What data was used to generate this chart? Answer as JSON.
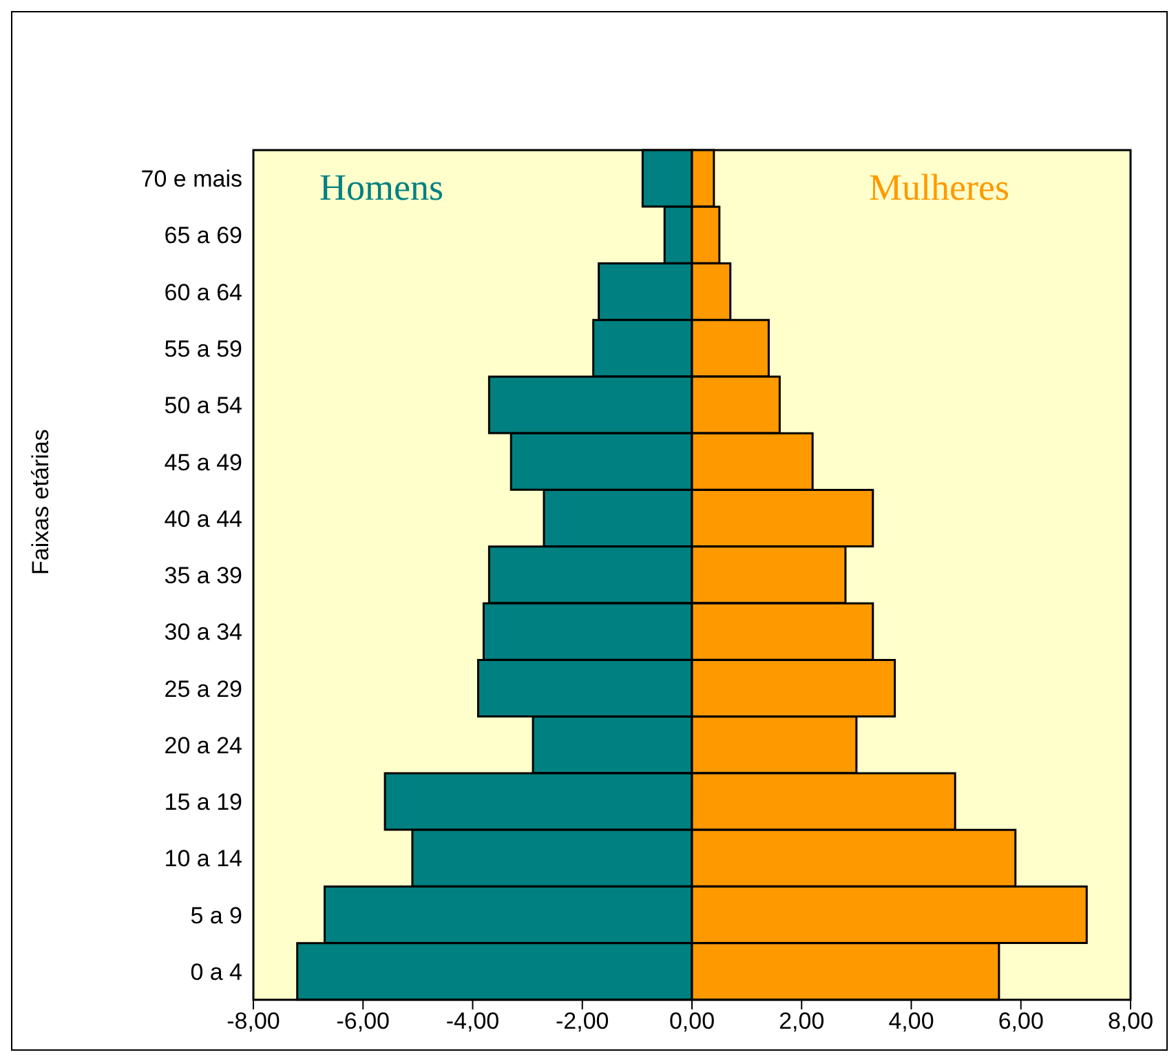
{
  "chart_data": {
    "type": "bar",
    "orientation": "horizontal",
    "ylabel": "Faixas etárias",
    "categories": [
      "70 e mais",
      "65 a 69",
      "60 a 64",
      "55 a 59",
      "50 a 54",
      "45 a 49",
      "40 a 44",
      "35 a 39",
      "30 a 34",
      "25 a 29",
      "20 a 24",
      "15 a 19",
      "10 a 14",
      "5 a 9",
      "0 a 4"
    ],
    "series": [
      {
        "name": "Homens",
        "color": "#008080",
        "values": [
          -0.9,
          -0.5,
          -1.7,
          -1.8,
          -3.7,
          -3.3,
          -2.7,
          -3.7,
          -3.8,
          -3.9,
          -2.9,
          -5.6,
          -5.1,
          -6.7,
          -7.2
        ]
      },
      {
        "name": "Mulheres",
        "color": "#ff9900",
        "values": [
          0.4,
          0.5,
          0.7,
          1.4,
          1.6,
          2.2,
          3.3,
          2.8,
          3.3,
          3.7,
          3.0,
          4.8,
          5.9,
          7.2,
          5.6
        ]
      }
    ],
    "xlim": [
      -8,
      8
    ],
    "xticks": [
      {
        "value": -8,
        "label": "-8,00"
      },
      {
        "value": -6,
        "label": "-6,00"
      },
      {
        "value": -4,
        "label": "-4,00"
      },
      {
        "value": -2,
        "label": "-2,00"
      },
      {
        "value": 0,
        "label": "0,00"
      },
      {
        "value": 2,
        "label": "2,00"
      },
      {
        "value": 4,
        "label": "4,00"
      },
      {
        "value": 6,
        "label": "6,00"
      },
      {
        "value": 8,
        "label": "8,00"
      }
    ],
    "stacked": true
  }
}
